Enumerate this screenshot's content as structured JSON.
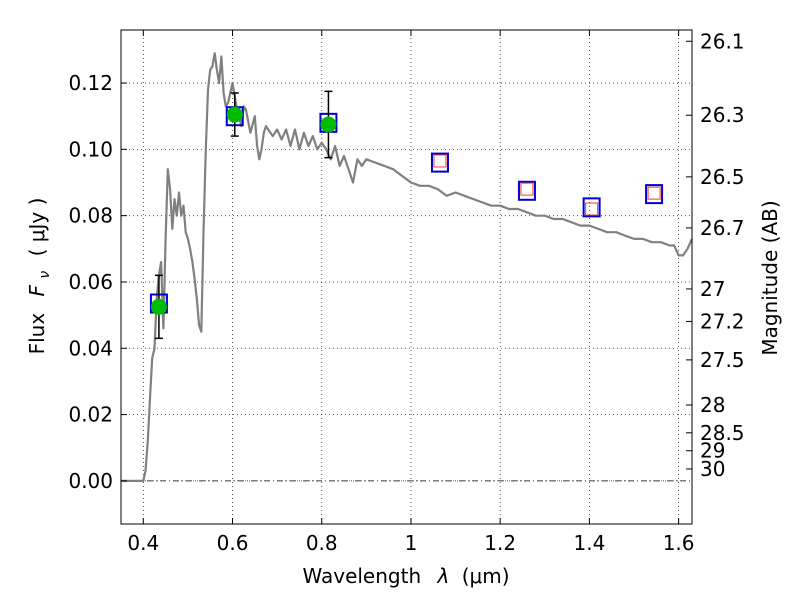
{
  "chart_data": {
    "type": "line",
    "xlabel_text": "Wavelength",
    "xlabel_symbol": "λ",
    "xlabel_unit": "(μm)",
    "ylabel_text": "Flux",
    "ylabel_symbol": "F",
    "ylabel_sub": "ν",
    "ylabel_unit": "( μJy )",
    "y2label": "Magnitude (AB)",
    "xlim": [
      0.35,
      1.63
    ],
    "ylim": [
      -0.013,
      0.136
    ],
    "grid": true,
    "xticks": [
      0.4,
      0.6,
      0.8,
      1.0,
      1.2,
      1.4,
      1.6
    ],
    "xtick_labels": [
      "0.4",
      "0.6",
      "0.8",
      "1",
      "1.2",
      "1.4",
      "1.6"
    ],
    "yticks": [
      0.0,
      0.02,
      0.04,
      0.06,
      0.08,
      0.1,
      0.12
    ],
    "ytick_labels": [
      "0.00",
      "0.02",
      "0.04",
      "0.06",
      "0.08",
      "0.10",
      "0.12"
    ],
    "right_ticks": [
      {
        "label": "26.1",
        "flux": 0.1326
      },
      {
        "label": "26.3",
        "flux": 0.1103
      },
      {
        "label": "26.5",
        "flux": 0.0917
      },
      {
        "label": "26.7",
        "flux": 0.0763
      },
      {
        "label": "27",
        "flux": 0.0579
      },
      {
        "label": "27.2",
        "flux": 0.0481
      },
      {
        "label": "27.5",
        "flux": 0.0365
      },
      {
        "label": "28",
        "flux": 0.0229
      },
      {
        "label": "28.5",
        "flux": 0.0145
      },
      {
        "label": "29",
        "flux": 0.0091
      },
      {
        "label": "30",
        "flux": 0.0036
      }
    ],
    "model_spectrum": {
      "color": "#808080",
      "x": [
        0.35,
        0.39,
        0.395,
        0.4,
        0.405,
        0.41,
        0.415,
        0.42,
        0.425,
        0.43,
        0.435,
        0.44,
        0.445,
        0.45,
        0.455,
        0.46,
        0.465,
        0.47,
        0.475,
        0.48,
        0.485,
        0.49,
        0.495,
        0.5,
        0.505,
        0.51,
        0.515,
        0.52,
        0.525,
        0.53,
        0.535,
        0.54,
        0.545,
        0.55,
        0.555,
        0.56,
        0.565,
        0.57,
        0.575,
        0.58,
        0.585,
        0.59,
        0.6,
        0.61,
        0.62,
        0.625,
        0.63,
        0.64,
        0.65,
        0.655,
        0.66,
        0.665,
        0.67,
        0.675,
        0.68,
        0.69,
        0.7,
        0.71,
        0.72,
        0.73,
        0.74,
        0.75,
        0.76,
        0.77,
        0.78,
        0.79,
        0.8,
        0.81,
        0.82,
        0.83,
        0.84,
        0.85,
        0.86,
        0.87,
        0.88,
        0.89,
        0.9,
        0.92,
        0.94,
        0.96,
        0.98,
        1.0,
        1.02,
        1.04,
        1.06,
        1.08,
        1.1,
        1.12,
        1.14,
        1.16,
        1.18,
        1.2,
        1.22,
        1.24,
        1.26,
        1.28,
        1.3,
        1.32,
        1.34,
        1.36,
        1.38,
        1.4,
        1.42,
        1.44,
        1.46,
        1.48,
        1.5,
        1.52,
        1.54,
        1.56,
        1.58,
        1.59,
        1.6,
        1.61,
        1.62,
        1.63
      ],
      "y": [
        0.0,
        0.0,
        0.0,
        0.0,
        0.003,
        0.012,
        0.025,
        0.037,
        0.04,
        0.055,
        0.062,
        0.066,
        0.046,
        0.073,
        0.094,
        0.088,
        0.076,
        0.085,
        0.08,
        0.087,
        0.08,
        0.083,
        0.075,
        0.073,
        0.07,
        0.066,
        0.061,
        0.055,
        0.047,
        0.045,
        0.075,
        0.1,
        0.118,
        0.124,
        0.125,
        0.129,
        0.124,
        0.12,
        0.128,
        0.117,
        0.113,
        0.114,
        0.12,
        0.112,
        0.107,
        0.113,
        0.112,
        0.105,
        0.11,
        0.101,
        0.097,
        0.1,
        0.105,
        0.107,
        0.106,
        0.104,
        0.106,
        0.103,
        0.106,
        0.101,
        0.106,
        0.1,
        0.105,
        0.101,
        0.104,
        0.1,
        0.102,
        0.1,
        0.097,
        0.101,
        0.095,
        0.098,
        0.094,
        0.09,
        0.097,
        0.095,
        0.097,
        0.096,
        0.095,
        0.094,
        0.092,
        0.09,
        0.089,
        0.089,
        0.088,
        0.086,
        0.087,
        0.086,
        0.085,
        0.084,
        0.083,
        0.083,
        0.082,
        0.082,
        0.081,
        0.08,
        0.08,
        0.079,
        0.079,
        0.078,
        0.077,
        0.077,
        0.076,
        0.075,
        0.075,
        0.074,
        0.073,
        0.073,
        0.072,
        0.072,
        0.071,
        0.071,
        0.068,
        0.068,
        0.07,
        0.073
      ]
    },
    "photometry_points": {
      "marker": "circle",
      "color": "#00bb00",
      "x": [
        0.435,
        0.605,
        0.815
      ],
      "y": [
        0.0525,
        0.1105,
        0.1075
      ],
      "yerr": [
        0.0095,
        0.0065,
        0.01
      ]
    },
    "model_band_boxes_blue": {
      "marker": "square",
      "color": "#0000cc",
      "x": [
        0.435,
        0.605,
        0.815,
        1.065,
        1.26,
        1.405,
        1.545
      ],
      "y": [
        0.0535,
        0.11,
        0.108,
        0.096,
        0.0875,
        0.0825,
        0.0865
      ]
    },
    "model_band_boxes_red": {
      "marker": "square",
      "color": "#ff3333",
      "x": [
        1.065,
        1.26,
        1.405,
        1.545
      ],
      "y": [
        0.0965,
        0.088,
        0.082,
        0.0868
      ]
    }
  }
}
